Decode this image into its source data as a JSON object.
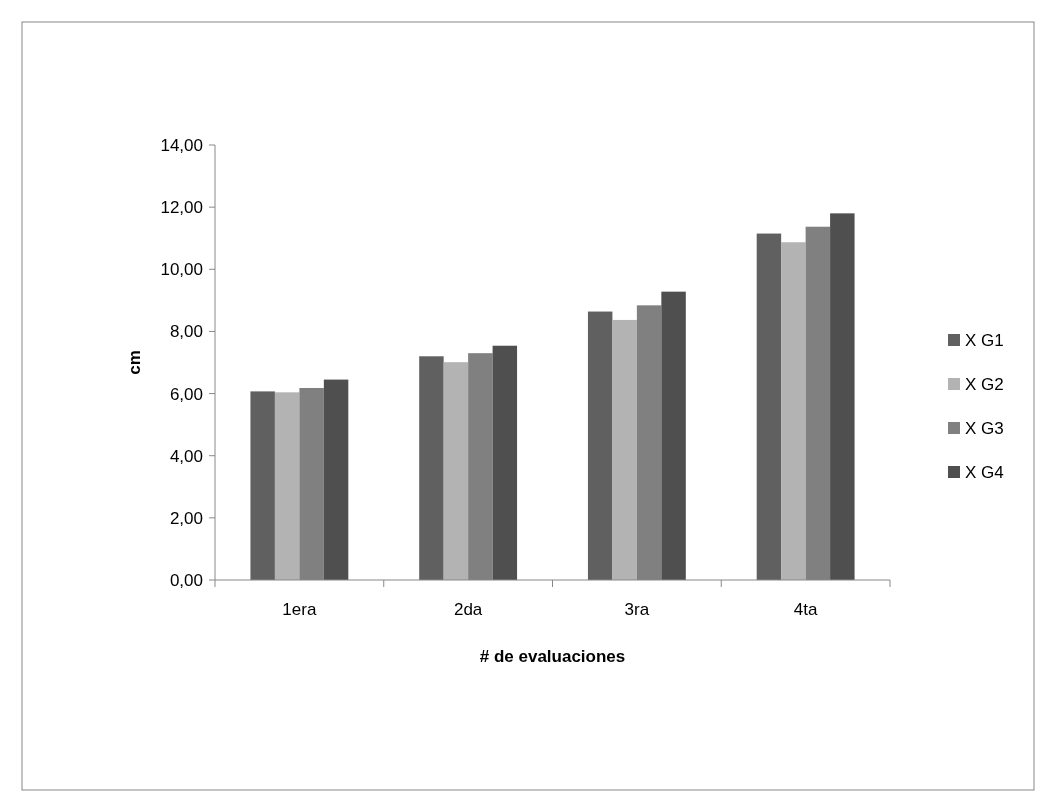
{
  "chart_data": {
    "type": "bar",
    "xlabel": "# de evaluaciones",
    "ylabel": "cm",
    "categories": [
      "1era",
      "2da",
      "3ra",
      "4ta"
    ],
    "series": [
      {
        "name": "X G1",
        "color": "#606060",
        "values": [
          6.07,
          7.2,
          8.64,
          11.15
        ]
      },
      {
        "name": "X G2",
        "color": "#b3b3b3",
        "values": [
          6.04,
          7.01,
          8.37,
          10.87
        ]
      },
      {
        "name": "X G3",
        "color": "#808080",
        "values": [
          6.18,
          7.3,
          8.84,
          11.37
        ]
      },
      {
        "name": "X G4",
        "color": "#4f4f4f",
        "values": [
          6.45,
          7.54,
          9.28,
          11.8
        ]
      }
    ],
    "ylim": [
      0,
      14
    ],
    "yticks": [
      {
        "value": 0,
        "label": "0,00"
      },
      {
        "value": 2,
        "label": "2,00"
      },
      {
        "value": 4,
        "label": "4,00"
      },
      {
        "value": 6,
        "label": "6,00"
      },
      {
        "value": 8,
        "label": "8,00"
      },
      {
        "value": 10,
        "label": "10,00"
      },
      {
        "value": 12,
        "label": "12,00"
      },
      {
        "value": 14,
        "label": "14,00"
      }
    ],
    "legend": "right"
  }
}
